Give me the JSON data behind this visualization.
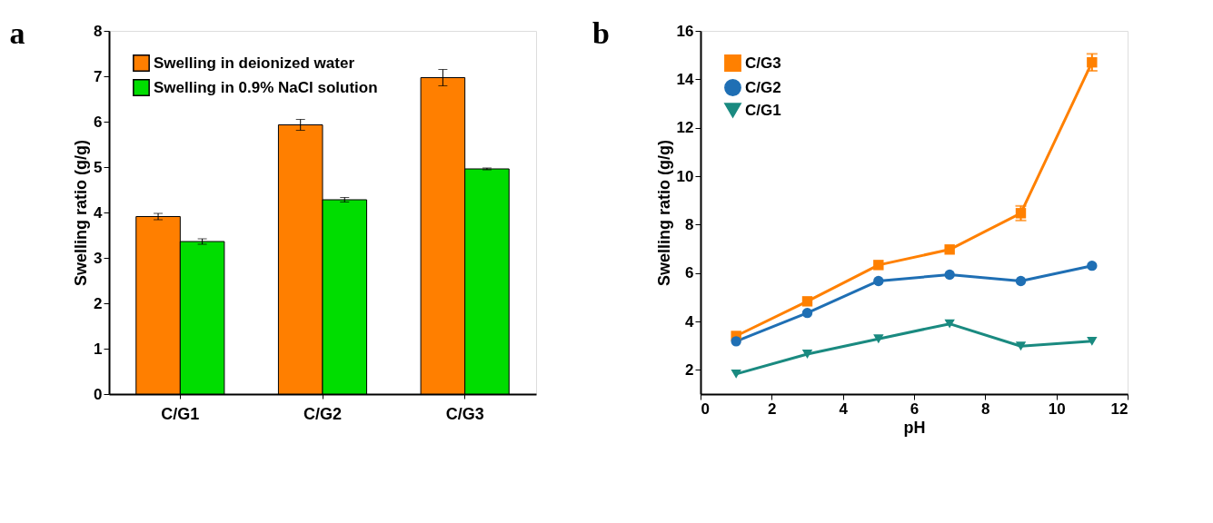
{
  "chart_data": [
    {
      "type": "bar",
      "title": "a",
      "ylabel": "Swelling ratio (g/g)",
      "categories": [
        "C/G1",
        "C/G2",
        "C/G3"
      ],
      "ylim": [
        0,
        8
      ],
      "yticks": [
        0,
        1,
        2,
        3,
        4,
        5,
        6,
        7,
        8
      ],
      "legend": "top left",
      "series": [
        {
          "name": "Swelling in deionized water",
          "color": "#ff7f00",
          "values": [
            3.91,
            5.93,
            6.97
          ],
          "errors": [
            0.07,
            0.12,
            0.18
          ]
        },
        {
          "name": "Swelling in 0.9% NaCl solution",
          "color": "#00dd00",
          "values": [
            3.36,
            4.28,
            4.96
          ],
          "errors": [
            0.06,
            0.05,
            0.02
          ]
        }
      ]
    },
    {
      "type": "line",
      "title": "b",
      "xlabel": "pH",
      "ylabel": "Swelling ratio (g/g)",
      "xlim": [
        0,
        12
      ],
      "xticks": [
        0,
        2,
        4,
        6,
        8,
        10,
        12
      ],
      "ylim": [
        1,
        16
      ],
      "yticks": [
        2,
        4,
        6,
        8,
        10,
        12,
        14,
        16
      ],
      "legend": "top left",
      "line_style": "solid",
      "series": [
        {
          "name": "C/G3",
          "color": "#ff8000",
          "marker": "square",
          "x": [
            1,
            3,
            5,
            7,
            9,
            11
          ],
          "values": [
            3.4,
            4.83,
            6.33,
            6.97,
            8.47,
            14.7
          ],
          "errors": [
            null,
            null,
            null,
            null,
            0.3,
            0.35
          ]
        },
        {
          "name": "C/G2",
          "color": "#1f6fb4",
          "marker": "circle",
          "x": [
            1,
            3,
            5,
            7,
            9,
            11
          ],
          "values": [
            3.18,
            4.35,
            5.67,
            5.93,
            5.67,
            6.3
          ]
        },
        {
          "name": "C/G1",
          "color": "#1a8a80",
          "marker": "triangle",
          "x": [
            1,
            3,
            5,
            7,
            9,
            11
          ],
          "values": [
            1.83,
            2.65,
            3.28,
            3.9,
            2.98,
            3.18
          ]
        }
      ]
    }
  ]
}
